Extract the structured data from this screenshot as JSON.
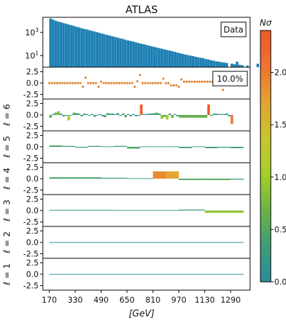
{
  "chart_data": {
    "type": "bar",
    "title": "ATLAS",
    "xlabel": "[GeV]",
    "x_ticks": [
      "170",
      "330",
      "490",
      "650",
      "810",
      "970",
      "1130",
      "1290"
    ],
    "x_tick_values": [
      170,
      330,
      490,
      650,
      810,
      970,
      1130,
      1290
    ],
    "x_range": [
      130,
      1410
    ],
    "top_panel": {
      "type": "bar",
      "legend": "Data",
      "y_scale": "log",
      "y_ticks": [
        "10^3",
        "10^1"
      ],
      "y_tick_values": [
        1000,
        10
      ],
      "ylim": [
        1,
        20000
      ],
      "bin_width": 16,
      "x_start": 170,
      "counts": [
        16000,
        13000,
        10000,
        8500,
        7500,
        6500,
        5600,
        4800,
        4200,
        3600,
        3100,
        2700,
        2300,
        2000,
        1800,
        1550,
        1350,
        1200,
        1050,
        900,
        780,
        680,
        600,
        520,
        460,
        400,
        350,
        300,
        270,
        230,
        200,
        180,
        160,
        140,
        120,
        105,
        95,
        82,
        72,
        64,
        56,
        50,
        44,
        39,
        34,
        30,
        27,
        24,
        21,
        18,
        16,
        14,
        12.5,
        11,
        10,
        9,
        8,
        7,
        6.5,
        6,
        5,
        4.6,
        4,
        3.6,
        3.2,
        3,
        2.7,
        2.5,
        2.3,
        0,
        2,
        1.8,
        3,
        1.6,
        1.5,
        0,
        1.4,
        0,
        0,
        0,
        2
      ]
    },
    "significance_panel": {
      "annotation": "10.0%",
      "y_ticks": [
        "2.5",
        "0.0",
        "-2.5"
      ],
      "y_tick_values": [
        2.5,
        0,
        -2.5
      ],
      "ylim": [
        -3.5,
        3.5
      ],
      "x": [
        170,
        186,
        202,
        218,
        234,
        250,
        266,
        282,
        298,
        314,
        330,
        346,
        362,
        378,
        394,
        410,
        426,
        442,
        458,
        474,
        490,
        506,
        522,
        538,
        554,
        570,
        586,
        602,
        618,
        634,
        650,
        666,
        682,
        698,
        714,
        730,
        746,
        762,
        778,
        794,
        810,
        826,
        842,
        858,
        874,
        890,
        906,
        922,
        938,
        954,
        970,
        986,
        1002,
        1018,
        1034,
        1050,
        1066,
        1082,
        1098,
        1114,
        1130,
        1146,
        1162,
        1178,
        1194,
        1210,
        1226,
        1242,
        1258,
        1274,
        1290,
        1306,
        1322,
        1338,
        1354,
        1370
      ],
      "y": [
        0,
        0,
        0,
        0,
        0,
        0,
        0,
        0,
        0,
        0,
        0,
        0,
        0,
        -0.8,
        1.2,
        0,
        0,
        0,
        0,
        -0.8,
        0.3,
        0,
        0,
        0,
        0,
        0,
        0,
        0,
        0,
        0,
        0,
        0,
        0,
        -0.8,
        0.4,
        1.8,
        0,
        0,
        0,
        0,
        0,
        0,
        0,
        0,
        1.0,
        0,
        0,
        -0.5,
        -0.5,
        -0.5,
        -0.8,
        0.8,
        0.3,
        0.3,
        0.3,
        0.3,
        0.3,
        0.3,
        0.3,
        0.3,
        0.3,
        0.3,
        0.3,
        0.3,
        0.3,
        0.3,
        1.5,
        -1.5,
        0.3,
        0.3,
        0.3,
        0.3,
        1.0,
        0.3,
        0.3,
        0.3
      ]
    },
    "harmonic_panels": [
      {
        "label": "ℓ = 6",
        "ylim": [
          -3.5,
          3.5
        ],
        "y_ticks": [
          "2.5",
          "0.0",
          "-2.5"
        ],
        "y_tick_values": [
          2.5,
          0,
          -2.5
        ],
        "bins": [
          [
            170,
            186,
            -0.6
          ],
          [
            186,
            202,
            0.2
          ],
          [
            202,
            218,
            0.5
          ],
          [
            218,
            234,
            0.8
          ],
          [
            234,
            250,
            0.3
          ],
          [
            250,
            266,
            -0.3
          ],
          [
            266,
            282,
            -0.2
          ],
          [
            282,
            298,
            -1.2
          ],
          [
            298,
            314,
            -0.1
          ],
          [
            314,
            330,
            0.5
          ],
          [
            330,
            346,
            0.4
          ],
          [
            346,
            362,
            0.3
          ],
          [
            362,
            378,
            -0.3
          ],
          [
            378,
            394,
            0.3
          ],
          [
            394,
            410,
            0.2
          ],
          [
            410,
            426,
            -0.1
          ],
          [
            426,
            442,
            0.2
          ],
          [
            442,
            458,
            -0.4
          ],
          [
            458,
            474,
            -0.1
          ],
          [
            474,
            490,
            0.2
          ],
          [
            490,
            506,
            -0.3
          ],
          [
            506,
            522,
            -0.5
          ],
          [
            522,
            538,
            0.4
          ],
          [
            538,
            554,
            0.3
          ],
          [
            554,
            570,
            0.3
          ],
          [
            570,
            586,
            0.2
          ],
          [
            586,
            602,
            0.4
          ],
          [
            602,
            618,
            -0.2
          ],
          [
            618,
            634,
            0.3
          ],
          [
            634,
            650,
            -0.5
          ],
          [
            650,
            666,
            0.2
          ],
          [
            666,
            682,
            -0.3
          ],
          [
            682,
            698,
            0.2
          ],
          [
            698,
            714,
            -0.3
          ],
          [
            714,
            730,
            -0.2
          ],
          [
            730,
            746,
            2.3
          ],
          [
            746,
            762,
            0.2
          ],
          [
            762,
            778,
            0.2
          ],
          [
            778,
            794,
            0.3
          ],
          [
            794,
            810,
            0.3
          ],
          [
            810,
            826,
            0.4
          ],
          [
            826,
            842,
            0.5
          ],
          [
            842,
            858,
            0.3
          ],
          [
            858,
            874,
            -0.8
          ],
          [
            874,
            890,
            -0.4
          ],
          [
            890,
            906,
            -1.0
          ],
          [
            906,
            922,
            0.3
          ],
          [
            922,
            938,
            -0.6
          ],
          [
            938,
            954,
            0.2
          ],
          [
            954,
            970,
            -0.3
          ],
          [
            970,
            986,
            -0.6
          ],
          [
            986,
            1002,
            -0.6
          ],
          [
            1002,
            1018,
            -0.6
          ],
          [
            1018,
            1034,
            -0.6
          ],
          [
            1034,
            1050,
            -0.6
          ],
          [
            1050,
            1066,
            -0.6
          ],
          [
            1066,
            1082,
            -0.6
          ],
          [
            1082,
            1098,
            -0.6
          ],
          [
            1098,
            1114,
            -0.6
          ],
          [
            1114,
            1130,
            -0.6
          ],
          [
            1130,
            1146,
            -0.6
          ],
          [
            1146,
            1162,
            2.3
          ],
          [
            1162,
            1178,
            -0.2
          ],
          [
            1178,
            1194,
            0.3
          ],
          [
            1194,
            1210,
            0.3
          ],
          [
            1210,
            1226,
            0.2
          ],
          [
            1226,
            1242,
            0.2
          ],
          [
            1242,
            1258,
            0.2
          ],
          [
            1258,
            1274,
            0.3
          ],
          [
            1274,
            1290,
            -0.3
          ],
          [
            1290,
            1306,
            -2.0
          ]
        ],
        "sigma": [
          0.6,
          0.2,
          0.5,
          0.8,
          0.3,
          0.3,
          0.2,
          1.2,
          0.1,
          0.5,
          0.4,
          0.3,
          0.3,
          0.3,
          0.2,
          0.1,
          0.2,
          0.4,
          0.1,
          0.2,
          0.3,
          0.5,
          0.4,
          0.3,
          0.3,
          0.2,
          0.4,
          0.2,
          0.3,
          0.5,
          0.2,
          0.3,
          0.2,
          0.3,
          0.2,
          2.4,
          0.2,
          0.2,
          0.3,
          0.3,
          0.4,
          0.5,
          0.3,
          0.8,
          0.4,
          1.0,
          0.3,
          0.6,
          0.2,
          0.3,
          0.6,
          0.6,
          0.6,
          0.6,
          0.6,
          0.6,
          0.6,
          0.6,
          0.6,
          0.6,
          0.6,
          2.4,
          0.2,
          0.3,
          0.3,
          0.2,
          0.2,
          0.2,
          0.3,
          0.3,
          2.0
        ]
      },
      {
        "label": "ℓ = 5",
        "ylim": [
          -3.5,
          3.5
        ],
        "y_ticks": [
          "2.5",
          "0.0",
          "-2.5"
        ],
        "y_tick_values": [
          2.5,
          0,
          -2.5
        ],
        "bins": [
          [
            170,
            250,
            0.3
          ],
          [
            250,
            330,
            0.2
          ],
          [
            330,
            410,
            -0.2
          ],
          [
            410,
            490,
            0.2
          ],
          [
            490,
            570,
            0.1
          ],
          [
            570,
            650,
            0.2
          ],
          [
            650,
            730,
            -0.4
          ],
          [
            730,
            810,
            0.1
          ],
          [
            810,
            890,
            0.1
          ],
          [
            890,
            970,
            0.1
          ],
          [
            970,
            1050,
            -0.3
          ],
          [
            1050,
            1130,
            0.1
          ],
          [
            1130,
            1210,
            -0.3
          ],
          [
            1210,
            1290,
            -0.2
          ],
          [
            1290,
            1370,
            -0.3
          ]
        ],
        "sigma": [
          0.4,
          0.3,
          0.3,
          0.3,
          0.2,
          0.3,
          0.5,
          0.2,
          0.2,
          0.2,
          0.4,
          0.2,
          0.4,
          0.3,
          0.4
        ]
      },
      {
        "label": "ℓ = 4",
        "ylim": [
          -3.5,
          3.5
        ],
        "y_ticks": [
          "2.5",
          "0.0",
          "-2.5"
        ],
        "y_tick_values": [
          2.5,
          0,
          -2.5
        ],
        "bins": [
          [
            170,
            330,
            0.3
          ],
          [
            330,
            490,
            0.3
          ],
          [
            490,
            650,
            0.2
          ],
          [
            650,
            810,
            0.1
          ],
          [
            810,
            890,
            1.6
          ],
          [
            890,
            970,
            1.6
          ],
          [
            970,
            1130,
            -0.3
          ],
          [
            1130,
            1290,
            -0.3
          ],
          [
            1290,
            1370,
            -0.2
          ]
        ],
        "sigma": [
          0.4,
          0.4,
          0.3,
          0.2,
          1.9,
          1.7,
          0.5,
          0.5,
          0.3
        ]
      },
      {
        "label": "ℓ = 3",
        "ylim": [
          -3.5,
          3.5
        ],
        "y_ticks": [
          "2.5",
          "0.0",
          "-2.5"
        ],
        "y_tick_values": [
          2.5,
          0,
          -2.5
        ],
        "bins": [
          [
            170,
            570,
            0.15
          ],
          [
            570,
            970,
            0.1
          ],
          [
            970,
            1130,
            0.2
          ],
          [
            1130,
            1370,
            -0.5
          ]
        ],
        "sigma": [
          0.3,
          0.3,
          0.3,
          0.9
        ]
      },
      {
        "label": "ℓ = 2",
        "ylim": [
          -3.5,
          3.5
        ],
        "y_ticks": [
          "2.5",
          "0.0",
          "-2.5"
        ],
        "y_tick_values": [
          2.5,
          0,
          -2.5
        ],
        "bins": [
          [
            170,
            1370,
            0.05
          ]
        ],
        "sigma": [
          0.05
        ]
      },
      {
        "label": "ℓ = 1",
        "ylim": [
          -3.5,
          3.5
        ],
        "y_ticks": [
          "2.5",
          "0.0",
          "-2.5"
        ],
        "y_tick_values": [
          2.5,
          0,
          -2.5
        ],
        "bins": [
          [
            170,
            1370,
            0.05
          ]
        ],
        "sigma": [
          0.05
        ]
      }
    ],
    "colorbar": {
      "label": "Nσ",
      "range": [
        0,
        2.4
      ],
      "ticks": [
        "0.0",
        "0.5",
        "1.0",
        "1.5",
        "2.0"
      ],
      "tick_values": [
        0,
        0.5,
        1.0,
        1.5,
        2.0
      ],
      "stops": [
        "#2a8a9c",
        "#3e9d77",
        "#6cb246",
        "#a6d027",
        "#c8c62e",
        "#e4a431",
        "#ee7330",
        "#ef5a23"
      ]
    },
    "colors": {
      "bars": "#1d7fb3",
      "points": "#e2852d",
      "frame": "#000000"
    }
  }
}
